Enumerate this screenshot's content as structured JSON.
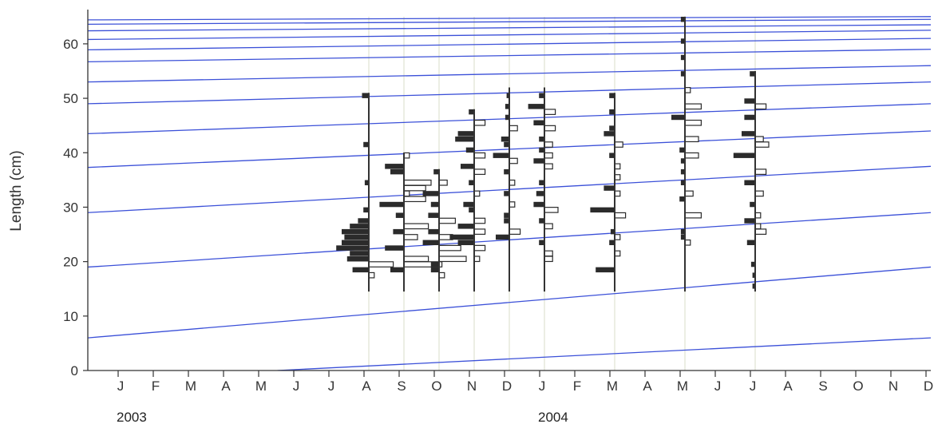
{
  "chart_data": {
    "type": "bar",
    "description_kind": "length-frequency histograms with growth curves",
    "ylabel": "Length (cm)",
    "ylim": [
      0,
      66
    ],
    "yticks": [
      0,
      10,
      20,
      30,
      40,
      50,
      60
    ],
    "month_labels": [
      "J",
      "F",
      "M",
      "A",
      "M",
      "J",
      "J",
      "A",
      "S",
      "O",
      "N",
      "D",
      "J",
      "F",
      "M",
      "A",
      "M",
      "J",
      "J",
      "A",
      "S",
      "O",
      "N",
      "D"
    ],
    "years": [
      {
        "label": "2003",
        "month_index": 0
      },
      {
        "label": "2004",
        "month_index": 12
      }
    ],
    "grid": false,
    "colors": {
      "growth_curve": "#3b50d8",
      "filled_bar": "#2b2b2b",
      "open_bar_edge": "#2b2b2b",
      "axis": "#333333",
      "sample_gridline": "#d8dcc8"
    },
    "growth_curves": [
      {
        "x": [
          5.4,
          24
        ],
        "y": [
          0,
          6
        ]
      },
      {
        "x": [
          0,
          24
        ],
        "y": [
          6,
          19
        ]
      },
      {
        "x": [
          0,
          24
        ],
        "y": [
          19,
          29
        ]
      },
      {
        "x": [
          0,
          24
        ],
        "y": [
          29,
          37.5
        ]
      },
      {
        "x": [
          0,
          24
        ],
        "y": [
          37.3,
          44
        ]
      },
      {
        "x": [
          0,
          24
        ],
        "y": [
          43.5,
          49
        ]
      },
      {
        "x": [
          0,
          24
        ],
        "y": [
          49,
          53
        ]
      },
      {
        "x": [
          0,
          24
        ],
        "y": [
          53,
          56
        ]
      },
      {
        "x": [
          0,
          24
        ],
        "y": [
          56.7,
          59
        ]
      },
      {
        "x": [
          0,
          24
        ],
        "y": [
          58.9,
          61
        ]
      },
      {
        "x": [
          0,
          24
        ],
        "y": [
          60.8,
          62.5
        ]
      },
      {
        "x": [
          0,
          24
        ],
        "y": [
          62.4,
          63.5
        ]
      },
      {
        "x": [
          0,
          24
        ],
        "y": [
          63.6,
          64.5
        ]
      },
      {
        "x": [
          0,
          24
        ],
        "y": [
          64.4,
          65
        ]
      }
    ],
    "samples": [
      {
        "month": 8.0,
        "y_range": [
          14.5,
          51
        ],
        "bars": [
          {
            "l": 17.5,
            "v": 2,
            "f": 0
          },
          {
            "l": 18.5,
            "v": 6,
            "f": 1
          },
          {
            "l": 19.5,
            "v": 9,
            "f": 0
          },
          {
            "l": 20.5,
            "v": 8,
            "f": 1
          },
          {
            "l": 21.5,
            "v": 7,
            "f": 1
          },
          {
            "l": 22.5,
            "v": 12,
            "f": 1
          },
          {
            "l": 23.5,
            "v": 10,
            "f": 1
          },
          {
            "l": 24.5,
            "v": 9,
            "f": 1
          },
          {
            "l": 25.5,
            "v": 10,
            "f": 1
          },
          {
            "l": 26.5,
            "v": 7,
            "f": 1
          },
          {
            "l": 27.5,
            "v": 4,
            "f": 1
          },
          {
            "l": 29.5,
            "v": 2,
            "f": 1
          },
          {
            "l": 34.5,
            "v": 1.5,
            "f": 1
          },
          {
            "l": 41.5,
            "v": 2,
            "f": 1
          },
          {
            "l": 50.5,
            "v": 2.5,
            "f": 1
          }
        ]
      },
      {
        "month": 9.0,
        "y_range": [
          14.5,
          40
        ],
        "bars": [
          {
            "l": 18.5,
            "v": 5,
            "f": 1
          },
          {
            "l": 19.5,
            "v": 14,
            "f": 0
          },
          {
            "l": 20.5,
            "v": 9,
            "f": 0
          },
          {
            "l": 22.5,
            "v": 7,
            "f": 1
          },
          {
            "l": 24.5,
            "v": 5,
            "f": 0
          },
          {
            "l": 25.5,
            "v": 4,
            "f": 1
          },
          {
            "l": 26.5,
            "v": 9,
            "f": 0
          },
          {
            "l": 28.5,
            "v": 3,
            "f": 1
          },
          {
            "l": 30.5,
            "v": 9,
            "f": 1
          },
          {
            "l": 31.5,
            "v": 8,
            "f": 0
          },
          {
            "l": 32.5,
            "v": 2,
            "f": 0
          },
          {
            "l": 33.5,
            "v": 8,
            "f": 0
          },
          {
            "l": 34.5,
            "v": 10,
            "f": 0
          },
          {
            "l": 36.5,
            "v": 5,
            "f": 1
          },
          {
            "l": 37.5,
            "v": 7,
            "f": 1
          },
          {
            "l": 39.5,
            "v": 2,
            "f": 0
          }
        ]
      },
      {
        "month": 10.0,
        "y_range": [
          14.5,
          37
        ],
        "bars": [
          {
            "l": 17.5,
            "v": 2,
            "f": 0
          },
          {
            "l": 18.5,
            "v": 3,
            "f": 1
          },
          {
            "l": 19.5,
            "v": 3,
            "f": 1
          },
          {
            "l": 20.5,
            "v": 10,
            "f": 0
          },
          {
            "l": 22.5,
            "v": 8,
            "f": 0
          },
          {
            "l": 23.5,
            "v": 6,
            "f": 1
          },
          {
            "l": 24.5,
            "v": 5,
            "f": 0
          },
          {
            "l": 25.5,
            "v": 4,
            "f": 1
          },
          {
            "l": 27.5,
            "v": 6,
            "f": 0
          },
          {
            "l": 28.5,
            "v": 4,
            "f": 1
          },
          {
            "l": 30.5,
            "v": 3,
            "f": 1
          },
          {
            "l": 32.5,
            "v": 6,
            "f": 1
          },
          {
            "l": 34.5,
            "v": 3,
            "f": 0
          },
          {
            "l": 36.5,
            "v": 2,
            "f": 1
          }
        ]
      },
      {
        "month": 11.0,
        "y_range": [
          14.5,
          48
        ],
        "bars": [
          {
            "l": 20.5,
            "v": 2,
            "f": 0
          },
          {
            "l": 22.5,
            "v": 4,
            "f": 0
          },
          {
            "l": 23.5,
            "v": 6,
            "f": 1
          },
          {
            "l": 24.5,
            "v": 9,
            "f": 1
          },
          {
            "l": 25.5,
            "v": 4,
            "f": 0
          },
          {
            "l": 26.5,
            "v": 6,
            "f": 1
          },
          {
            "l": 27.5,
            "v": 4,
            "f": 0
          },
          {
            "l": 29.5,
            "v": 2,
            "f": 1
          },
          {
            "l": 30.5,
            "v": 4,
            "f": 1
          },
          {
            "l": 32.5,
            "v": 2,
            "f": 0
          },
          {
            "l": 34.5,
            "v": 2,
            "f": 1
          },
          {
            "l": 36.5,
            "v": 4,
            "f": 0
          },
          {
            "l": 37.5,
            "v": 5,
            "f": 1
          },
          {
            "l": 39.5,
            "v": 4,
            "f": 0
          },
          {
            "l": 40.5,
            "v": 3,
            "f": 1
          },
          {
            "l": 42.5,
            "v": 7,
            "f": 1
          },
          {
            "l": 43.5,
            "v": 6,
            "f": 1
          },
          {
            "l": 45.5,
            "v": 4,
            "f": 0
          },
          {
            "l": 47.5,
            "v": 2,
            "f": 1
          }
        ]
      },
      {
        "month": 12.0,
        "y_range": [
          14.5,
          52
        ],
        "bars": [
          {
            "l": 24.5,
            "v": 5,
            "f": 1
          },
          {
            "l": 25.5,
            "v": 4,
            "f": 0
          },
          {
            "l": 27.5,
            "v": 2,
            "f": 1
          },
          {
            "l": 28.5,
            "v": 2,
            "f": 1
          },
          {
            "l": 30.5,
            "v": 2,
            "f": 0
          },
          {
            "l": 32.5,
            "v": 2,
            "f": 1
          },
          {
            "l": 34.5,
            "v": 2,
            "f": 0
          },
          {
            "l": 36.5,
            "v": 2,
            "f": 1
          },
          {
            "l": 38.5,
            "v": 3,
            "f": 0
          },
          {
            "l": 39.5,
            "v": 6,
            "f": 1
          },
          {
            "l": 41.5,
            "v": 2,
            "f": 1
          },
          {
            "l": 42.5,
            "v": 3,
            "f": 1
          },
          {
            "l": 44.5,
            "v": 3,
            "f": 0
          },
          {
            "l": 46.5,
            "v": 1.5,
            "f": 1
          },
          {
            "l": 48.5,
            "v": 1.5,
            "f": 1
          },
          {
            "l": 50.5,
            "v": 1,
            "f": 1
          }
        ]
      },
      {
        "month": 13.0,
        "y_range": [
          14.5,
          52
        ],
        "bars": [
          {
            "l": 20.5,
            "v": 3,
            "f": 0
          },
          {
            "l": 21.5,
            "v": 3,
            "f": 0
          },
          {
            "l": 23.5,
            "v": 2,
            "f": 1
          },
          {
            "l": 26.5,
            "v": 3,
            "f": 0
          },
          {
            "l": 27.5,
            "v": 2,
            "f": 1
          },
          {
            "l": 29.5,
            "v": 5,
            "f": 0
          },
          {
            "l": 30.5,
            "v": 4,
            "f": 1
          },
          {
            "l": 32.5,
            "v": 3,
            "f": 1
          },
          {
            "l": 34.5,
            "v": 2,
            "f": 1
          },
          {
            "l": 37.5,
            "v": 3,
            "f": 0
          },
          {
            "l": 38.5,
            "v": 4,
            "f": 1
          },
          {
            "l": 39.5,
            "v": 3,
            "f": 0
          },
          {
            "l": 40.5,
            "v": 2,
            "f": 1
          },
          {
            "l": 41.5,
            "v": 3,
            "f": 0
          },
          {
            "l": 42.5,
            "v": 2,
            "f": 1
          },
          {
            "l": 44.5,
            "v": 4,
            "f": 0
          },
          {
            "l": 45.5,
            "v": 4,
            "f": 1
          },
          {
            "l": 47.5,
            "v": 4,
            "f": 0
          },
          {
            "l": 48.5,
            "v": 6,
            "f": 1
          },
          {
            "l": 50.5,
            "v": 2,
            "f": 1
          }
        ]
      },
      {
        "month": 15.0,
        "y_range": [
          14.5,
          51
        ],
        "bars": [
          {
            "l": 18.5,
            "v": 7,
            "f": 1
          },
          {
            "l": 21.5,
            "v": 2,
            "f": 0
          },
          {
            "l": 23.5,
            "v": 2,
            "f": 1
          },
          {
            "l": 24.5,
            "v": 2,
            "f": 0
          },
          {
            "l": 25.5,
            "v": 1.5,
            "f": 1
          },
          {
            "l": 28.5,
            "v": 4,
            "f": 0
          },
          {
            "l": 29.5,
            "v": 9,
            "f": 1
          },
          {
            "l": 32.5,
            "v": 2,
            "f": 0
          },
          {
            "l": 33.5,
            "v": 4,
            "f": 1
          },
          {
            "l": 35.5,
            "v": 2,
            "f": 0
          },
          {
            "l": 37.5,
            "v": 2,
            "f": 0
          },
          {
            "l": 39.5,
            "v": 2,
            "f": 1
          },
          {
            "l": 41.5,
            "v": 3,
            "f": 0
          },
          {
            "l": 43.5,
            "v": 4,
            "f": 1
          },
          {
            "l": 44.5,
            "v": 2,
            "f": 1
          },
          {
            "l": 47.5,
            "v": 2,
            "f": 1
          },
          {
            "l": 50.5,
            "v": 2,
            "f": 1
          }
        ]
      },
      {
        "month": 17.0,
        "y_range": [
          14.5,
          65
        ],
        "bars": [
          {
            "l": 23.5,
            "v": 2,
            "f": 0
          },
          {
            "l": 24.5,
            "v": 1.5,
            "f": 1
          },
          {
            "l": 25.5,
            "v": 1.5,
            "f": 1
          },
          {
            "l": 28.5,
            "v": 6,
            "f": 0
          },
          {
            "l": 31.5,
            "v": 2,
            "f": 1
          },
          {
            "l": 32.5,
            "v": 3,
            "f": 0
          },
          {
            "l": 34.5,
            "v": 1.5,
            "f": 1
          },
          {
            "l": 36.5,
            "v": 1.5,
            "f": 1
          },
          {
            "l": 38.5,
            "v": 1.5,
            "f": 1
          },
          {
            "l": 39.5,
            "v": 5,
            "f": 0
          },
          {
            "l": 40.5,
            "v": 2,
            "f": 1
          },
          {
            "l": 42.5,
            "v": 5,
            "f": 0
          },
          {
            "l": 45.5,
            "v": 6,
            "f": 0
          },
          {
            "l": 46.5,
            "v": 5,
            "f": 1
          },
          {
            "l": 48.5,
            "v": 6,
            "f": 0
          },
          {
            "l": 51.5,
            "v": 2,
            "f": 0
          },
          {
            "l": 54.5,
            "v": 1.5,
            "f": 1
          },
          {
            "l": 57.5,
            "v": 1.5,
            "f": 1
          },
          {
            "l": 60.5,
            "v": 1.5,
            "f": 1
          },
          {
            "l": 64.5,
            "v": 1.5,
            "f": 1
          }
        ]
      },
      {
        "month": 19.0,
        "y_range": [
          14.5,
          55
        ],
        "bars": [
          {
            "l": 15.5,
            "v": 1,
            "f": 1
          },
          {
            "l": 17.5,
            "v": 1,
            "f": 1
          },
          {
            "l": 19.5,
            "v": 1.5,
            "f": 1
          },
          {
            "l": 23.5,
            "v": 3,
            "f": 1
          },
          {
            "l": 25.5,
            "v": 4,
            "f": 0
          },
          {
            "l": 26.5,
            "v": 2,
            "f": 0
          },
          {
            "l": 27.5,
            "v": 4,
            "f": 1
          },
          {
            "l": 28.5,
            "v": 2,
            "f": 0
          },
          {
            "l": 30.5,
            "v": 2,
            "f": 1
          },
          {
            "l": 32.5,
            "v": 3,
            "f": 0
          },
          {
            "l": 34.5,
            "v": 4,
            "f": 1
          },
          {
            "l": 36.5,
            "v": 4,
            "f": 0
          },
          {
            "l": 39.5,
            "v": 8,
            "f": 1
          },
          {
            "l": 41.5,
            "v": 5,
            "f": 0
          },
          {
            "l": 42.5,
            "v": 3,
            "f": 0
          },
          {
            "l": 43.5,
            "v": 5,
            "f": 1
          },
          {
            "l": 46.5,
            "v": 4,
            "f": 1
          },
          {
            "l": 48.5,
            "v": 4,
            "f": 0
          },
          {
            "l": 49.5,
            "v": 4,
            "f": 1
          },
          {
            "l": 54.5,
            "v": 2,
            "f": 1
          }
        ]
      }
    ]
  }
}
